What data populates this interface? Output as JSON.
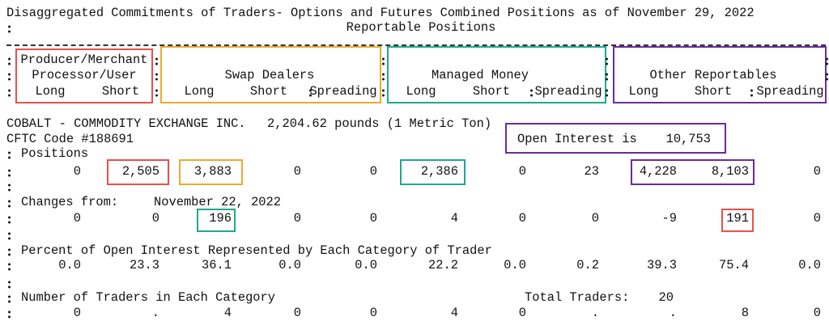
{
  "header": {
    "title": "Disaggregated Commitments of Traders- Options and Futures Combined Positions as of November 29, 2022",
    "subtitle": "Reportable Positions"
  },
  "groups": [
    {
      "name_lines": [
        "Producer/Merchant",
        "Processor/User"
      ],
      "columns": [
        "Long",
        "Short"
      ]
    },
    {
      "name_lines": [
        "Swap Dealers"
      ],
      "columns": [
        "Long",
        "Short",
        "Spreading"
      ]
    },
    {
      "name_lines": [
        "Managed Money"
      ],
      "columns": [
        "Long",
        "Short",
        "Spreading"
      ]
    },
    {
      "name_lines": [
        "Other Reportables"
      ],
      "columns": [
        "Long",
        "Short",
        "Spreading"
      ]
    }
  ],
  "commodity": {
    "name": "COBALT - COMMODITY EXCHANGE INC.",
    "unit": "2,204.62 pounds (1 Metric Ton)",
    "code": "CFTC Code #188691",
    "open_interest_label": "Open Interest is",
    "open_interest": "10,753"
  },
  "positions": {
    "label": "Positions",
    "values": [
      "0",
      "2,505",
      "3,883",
      "0",
      "0",
      "2,386",
      "0",
      "23",
      "4,228",
      "8,103",
      "0"
    ]
  },
  "changes": {
    "label": "Changes from:",
    "date": "November 22, 2022",
    "values": [
      "0",
      "0",
      "196",
      "0",
      "0",
      "4",
      "0",
      "0",
      "-9",
      "191",
      "0"
    ]
  },
  "percent": {
    "label": "Percent of Open Interest Represented by Each Category of Trader",
    "values": [
      "0.0",
      "23.3",
      "36.1",
      "0.0",
      "0.0",
      "22.2",
      "0.0",
      "0.2",
      "39.3",
      "75.4",
      "0.0"
    ]
  },
  "traders": {
    "label": "Number of Traders in Each Category",
    "total_label": "Total Traders:",
    "total": "20",
    "values": [
      "0",
      ".",
      "4",
      "0",
      "0",
      "4",
      "0",
      ".",
      ".",
      "8",
      "0"
    ]
  }
}
